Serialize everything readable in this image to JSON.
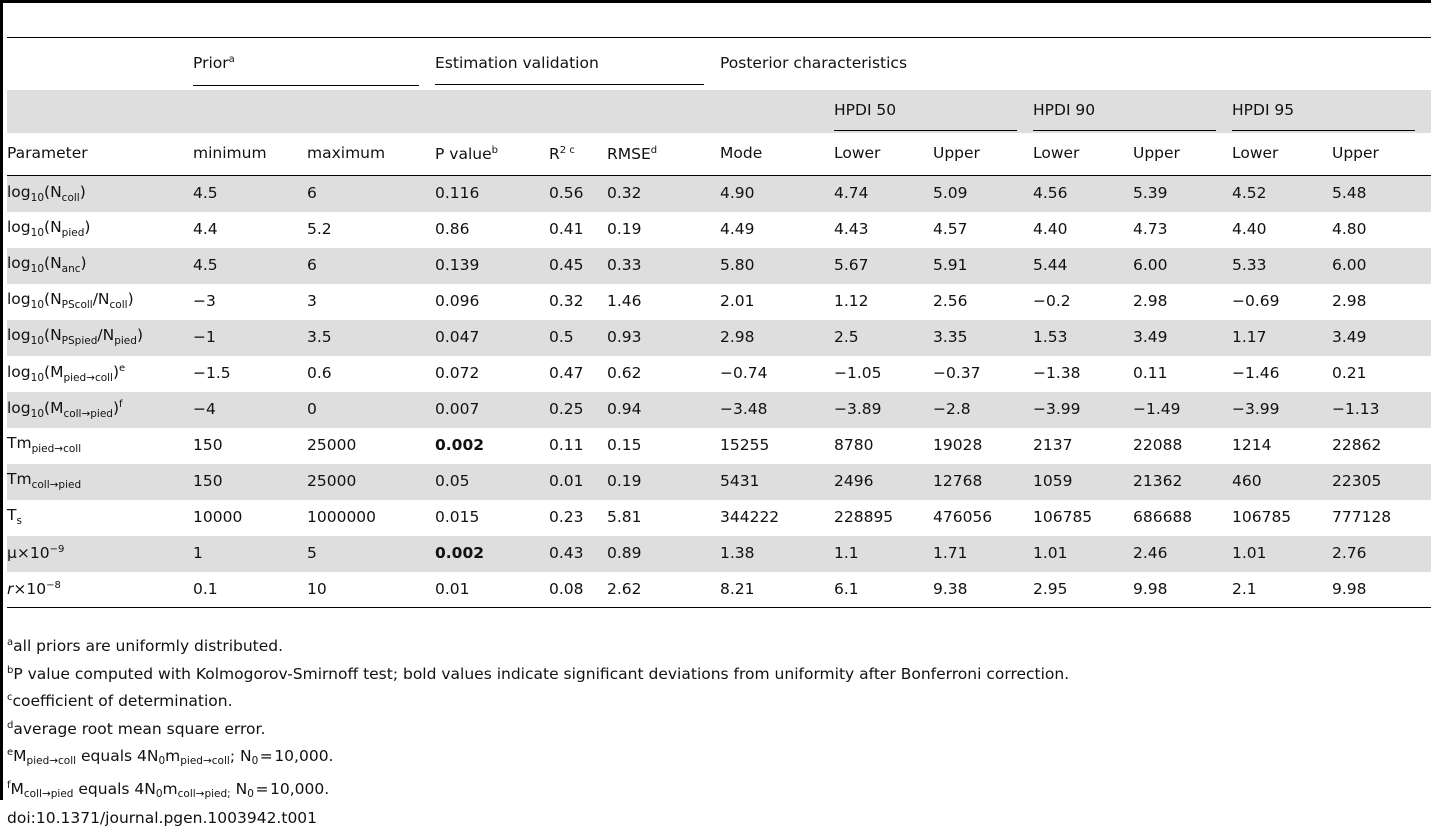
{
  "table": {
    "groups": {
      "prior": "Prior",
      "prior_sup": "a",
      "estimation": "Estimation validation",
      "posterior": "Posterior characteristics"
    },
    "hpdi": [
      "HPDI 50",
      "HPDI 90",
      "HPDI 95"
    ],
    "columns": {
      "parameter": "Parameter",
      "minimum": "minimum",
      "maximum": "maximum",
      "pvalue": "P value",
      "pvalue_sup": "b",
      "r2": "R",
      "r2_sup": "2 c",
      "rmse": "RMSE",
      "rmse_sup": "d",
      "mode": "Mode",
      "lower": "Lower",
      "upper": "Upper"
    },
    "rows": [
      {
        "p": {
          "a": "log",
          "b": "10",
          "c": "(N",
          "d": "coll",
          "e": ")"
        },
        "v": [
          "4.5",
          "6",
          "0.116",
          "0.56",
          "0.32",
          "4.90",
          "4.74",
          "5.09",
          "4.56",
          "5.39",
          "4.52",
          "5.48"
        ]
      },
      {
        "p": {
          "a": "log",
          "b": "10",
          "c": "(N",
          "d": "pied",
          "e": ")"
        },
        "v": [
          "4.4",
          "5.2",
          "0.86",
          "0.41",
          "0.19",
          "4.49",
          "4.43",
          "4.57",
          "4.40",
          "4.73",
          "4.40",
          "4.80"
        ]
      },
      {
        "p": {
          "a": "log",
          "b": "10",
          "c": "(N",
          "d": "anc",
          "e": ")"
        },
        "v": [
          "4.5",
          "6",
          "0.139",
          "0.45",
          "0.33",
          "5.80",
          "5.67",
          "5.91",
          "5.44",
          "6.00",
          "5.33",
          "6.00"
        ]
      },
      {
        "p": {
          "a": "log",
          "b": "10",
          "c": "(N",
          "d": "PScoll",
          "e": "/N",
          "f": "coll",
          "g": ")"
        },
        "v": [
          "−3",
          "3",
          "0.096",
          "0.32",
          "1.46",
          "2.01",
          "1.12",
          "2.56",
          "−0.2",
          "2.98",
          "−0.69",
          "2.98"
        ]
      },
      {
        "p": {
          "a": "log",
          "b": "10",
          "c": "(N",
          "d": "PSpied",
          "e": "/N",
          "f": "pied",
          "g": ")"
        },
        "v": [
          "−1",
          "3.5",
          "0.047",
          "0.5",
          "0.93",
          "2.98",
          "2.5",
          "3.35",
          "1.53",
          "3.49",
          "1.17",
          "3.49"
        ]
      },
      {
        "p": {
          "a": "log",
          "b": "10",
          "c": "(M",
          "d": "pied→coll",
          "e": ")",
          "sup": "e"
        },
        "v": [
          "−1.5",
          "0.6",
          "0.072",
          "0.47",
          "0.62",
          "−0.74",
          "−1.05",
          "−0.37",
          "−1.38",
          "0.11",
          "−1.46",
          "0.21"
        ]
      },
      {
        "p": {
          "a": "log",
          "b": "10",
          "c": "(M",
          "d": "coll→pied",
          "e": ")",
          "sup": "f"
        },
        "v": [
          "−4",
          "0",
          "0.007",
          "0.25",
          "0.94",
          "−3.48",
          "−3.89",
          "−2.8",
          "−3.99",
          "−1.49",
          "−3.99",
          "−1.13"
        ]
      },
      {
        "p": {
          "a": "Tm",
          "d": "pied→coll"
        },
        "v": [
          "150",
          "25000",
          "0.002",
          "0.11",
          "0.15",
          "15255",
          "8780",
          "19028",
          "2137",
          "22088",
          "1214",
          "22862"
        ],
        "bold": 2
      },
      {
        "p": {
          "a": "Tm",
          "d": "coll→pied"
        },
        "v": [
          "150",
          "25000",
          "0.05",
          "0.01",
          "0.19",
          "5431",
          "2496",
          "12768",
          "1059",
          "21362",
          "460",
          "22305"
        ]
      },
      {
        "p": {
          "a": "T",
          "d": "s"
        },
        "v": [
          "10000",
          "1000000",
          "0.015",
          "0.23",
          "5.81",
          "344222",
          "228895",
          "476056",
          "106785",
          "686688",
          "106785",
          "777128"
        ]
      },
      {
        "p": {
          "a": "μ×10",
          "sup": "−9"
        },
        "v": [
          "1",
          "5",
          "0.002",
          "0.43",
          "0.89",
          "1.38",
          "1.1",
          "1.71",
          "1.01",
          "2.46",
          "1.01",
          "2.76"
        ],
        "bold": 2
      },
      {
        "p": {
          "ai": "r",
          "a": "×10",
          "sup": "−8"
        },
        "v": [
          "0.1",
          "10",
          "0.01",
          "0.08",
          "2.62",
          "8.21",
          "6.1",
          "9.38",
          "2.95",
          "9.98",
          "2.1",
          "9.98"
        ]
      }
    ]
  },
  "footnotes": {
    "a": {
      "mark": "a",
      "text": "all priors are uniformly distributed."
    },
    "b": {
      "mark": "b",
      "text": "P value computed with Kolmogorov-Smirnoff test; bold values indicate significant deviations from uniformity after Bonferroni correction."
    },
    "c": {
      "mark": "c",
      "text": "coefficient of determination."
    },
    "d": {
      "mark": "d",
      "text": "average root mean square error."
    },
    "e": {
      "mark": "e",
      "t1": "M",
      "s1": "pied→coll",
      "t2": " equals 4N",
      "s2": "0",
      "t3": "m",
      "s3": "pied→coll",
      "t4": "; N",
      "s4": "0",
      "t5": " = 10,000."
    },
    "f": {
      "mark": "f",
      "t1": "M",
      "s1": "coll→pied",
      "t2": " equals 4N",
      "s2": "0",
      "t3": "m",
      "s3": "coll→pied;",
      "t4": " N",
      "s4": "0",
      "t5": " = 10,000."
    },
    "doi": "doi:10.1371/journal.pgen.1003942.t001"
  }
}
